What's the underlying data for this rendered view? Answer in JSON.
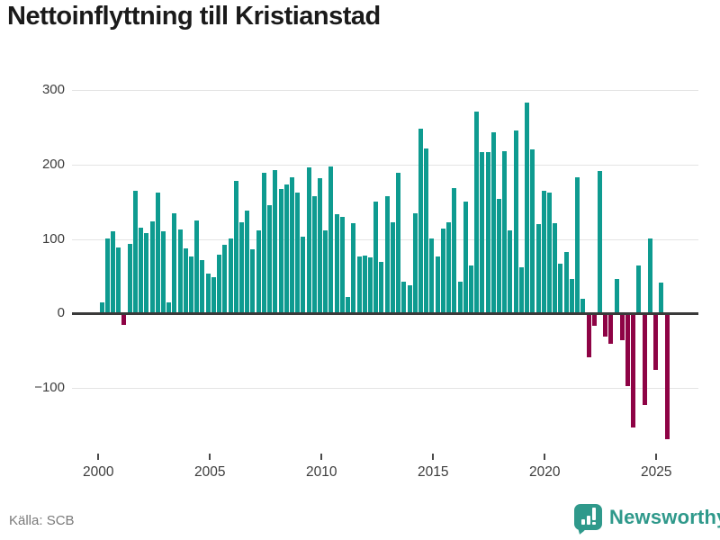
{
  "title": "Nettoinflyttning till Kristianstad",
  "source": "Källa: SCB",
  "brand": {
    "name": "Newsworthy"
  },
  "colors": {
    "positive": "#0e9b90",
    "negative": "#8e0345",
    "axis": "#3a3a3a",
    "grid": "#e4e4e4",
    "tick_text": "#3c3c3c",
    "muted_text": "#7a7a7a",
    "brand": "#2f998b",
    "title_text": "#1a1a1a"
  },
  "chart_data": {
    "type": "bar",
    "frequency": "quarterly",
    "x_start": {
      "year": 2000,
      "quarter": 1
    },
    "x_end": {
      "year": 2025,
      "quarter": 2
    },
    "title": "Nettoinflyttning till Kristianstad",
    "xlabel": "",
    "ylabel": "",
    "ylim": [
      -175,
      310
    ],
    "grid": true,
    "legend": false,
    "y_tick_values": [
      300,
      200,
      100,
      0,
      -100
    ],
    "y_tick_labels": [
      "300",
      "200",
      "100",
      "0",
      "−100"
    ],
    "x_tick_years": [
      2000,
      2005,
      2010,
      2015,
      2020,
      2025
    ],
    "x_tick_labels": [
      "2000",
      "2005",
      "2010",
      "2015",
      "2020",
      "2025"
    ],
    "values": [
      14,
      101,
      110,
      88,
      -14,
      93,
      165,
      115,
      108,
      124,
      163,
      110,
      14,
      135,
      113,
      87,
      77,
      125,
      72,
      53,
      49,
      79,
      92,
      101,
      178,
      123,
      138,
      86,
      112,
      189,
      146,
      193,
      167,
      173,
      183,
      163,
      103,
      196,
      157,
      182,
      111,
      198,
      133,
      130,
      22,
      121,
      76,
      78,
      75,
      150,
      69,
      158,
      123,
      189,
      42,
      38,
      134,
      249,
      222,
      101,
      76,
      114,
      122,
      169,
      43,
      150,
      64,
      271,
      217,
      217,
      244,
      154,
      218,
      112,
      246,
      62,
      284,
      221,
      120,
      165,
      163,
      121,
      67,
      82,
      46,
      183,
      20,
      -57,
      -15,
      191,
      -30,
      -39,
      46,
      -34,
      -96,
      -152,
      64,
      -122,
      101,
      -74,
      41,
      -168
    ]
  }
}
